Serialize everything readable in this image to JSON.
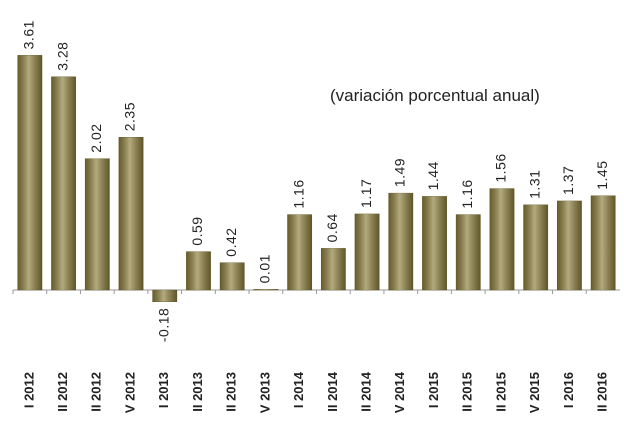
{
  "chart_data": {
    "type": "bar",
    "annotation": "(variación porcentual anual)",
    "categories": [
      "I 2012",
      "II 2012",
      "II 2012",
      "V 2012",
      "I 2013",
      "II 2013",
      "II 2013",
      "V 2013",
      "I 2014",
      "II 2014",
      "II 2014",
      "V 2014",
      "I 2015",
      "II 2015",
      "II 2015",
      "V 2015",
      "I 2016",
      "II 2016"
    ],
    "values": [
      3.61,
      3.28,
      2.02,
      2.35,
      -0.18,
      0.59,
      0.42,
      0.01,
      1.16,
      0.64,
      1.17,
      1.49,
      1.44,
      1.16,
      1.56,
      1.31,
      1.37,
      1.45
    ],
    "color": "#8b7d3b",
    "ylim": [
      -1,
      4
    ]
  }
}
